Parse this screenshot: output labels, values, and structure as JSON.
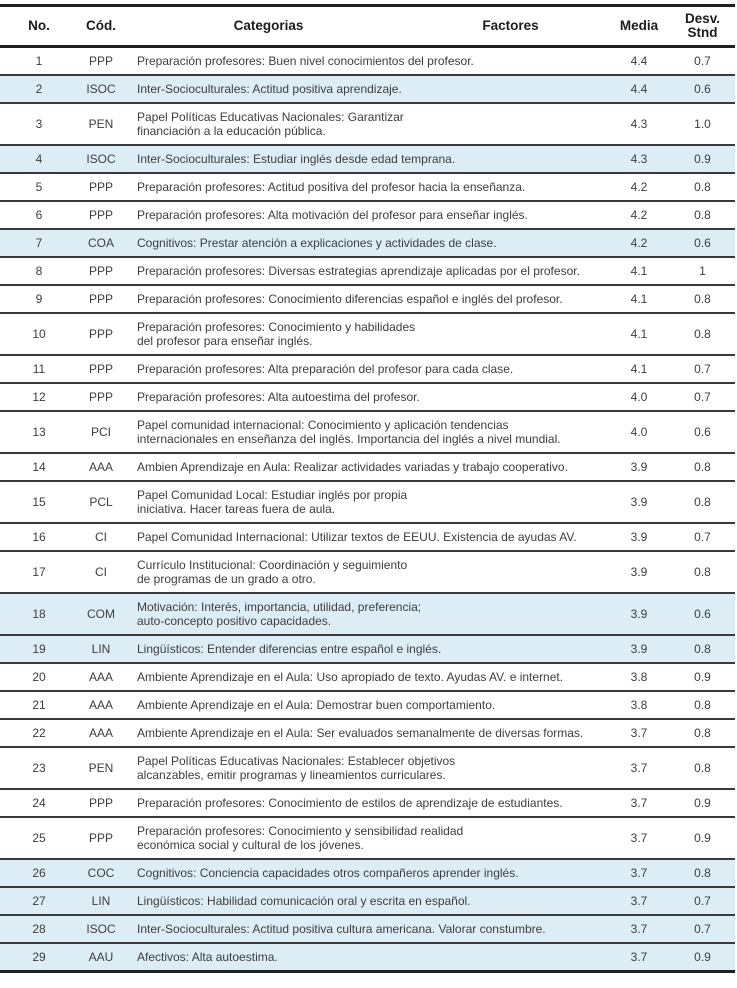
{
  "table": {
    "headers": {
      "no": "No.",
      "cod": "Cód.",
      "categorias": "Categorias",
      "factores": "Factores",
      "media": "Media",
      "desv_line1": "Desv.",
      "desv_line2": "Stnd"
    },
    "rows": [
      {
        "no": "1",
        "cod": "PPP",
        "desc": "Preparación profesores: Buen nivel conocimientos del profesor.",
        "media": "4.4",
        "desv": "0.7",
        "shaded": false
      },
      {
        "no": "2",
        "cod": "ISOC",
        "desc": "Inter-Socioculturales: Actitud positiva aprendizaje.",
        "media": "4.4",
        "desv": "0.6",
        "shaded": true
      },
      {
        "no": "3",
        "cod": "PEN",
        "desc": "Papel Políticas Educativas Nacionales: Garantizar\nfinanciación a la educación pública.",
        "media": "4.3",
        "desv": "1.0",
        "shaded": false
      },
      {
        "no": "4",
        "cod": "ISOC",
        "desc": "Inter-Socioculturales: Estudiar inglés desde edad temprana.",
        "media": "4.3",
        "desv": "0.9",
        "shaded": true
      },
      {
        "no": "5",
        "cod": "PPP",
        "desc": "Preparación profesores: Actitud positiva del profesor hacia la enseñanza.",
        "media": "4.2",
        "desv": "0.8",
        "shaded": false
      },
      {
        "no": "6",
        "cod": "PPP",
        "desc": "Preparación profesores: Alta motivación del profesor para enseñar inglés.",
        "media": "4.2",
        "desv": "0.8",
        "shaded": false
      },
      {
        "no": "7",
        "cod": "COA",
        "desc": "Cognitivos: Prestar atención a explicaciones y actividades de clase.",
        "media": "4.2",
        "desv": "0.6",
        "shaded": true
      },
      {
        "no": "8",
        "cod": "PPP",
        "desc": "Preparación profesores: Diversas estrategias aprendizaje aplicadas por el profesor.",
        "media": "4.1",
        "desv": "1",
        "shaded": false
      },
      {
        "no": "9",
        "cod": "PPP",
        "desc": "Preparación profesores: Conocimiento diferencias español e inglés del profesor.",
        "media": "4.1",
        "desv": "0.8",
        "shaded": false
      },
      {
        "no": "10",
        "cod": "PPP",
        "desc": "Preparación profesores: Conocimiento y habilidades\ndel profesor para enseñar inglés.",
        "media": "4.1",
        "desv": "0.8",
        "shaded": false
      },
      {
        "no": "11",
        "cod": "PPP",
        "desc": "Preparación profesores: Alta preparación del profesor para cada clase.",
        "media": "4.1",
        "desv": "0.7",
        "shaded": false
      },
      {
        "no": "12",
        "cod": "PPP",
        "desc": "Preparación profesores: Alta autoestima del profesor.",
        "media": "4.0",
        "desv": "0.7",
        "shaded": false
      },
      {
        "no": "13",
        "cod": "PCI",
        "desc": "Papel comunidad internacional: Conocimiento y aplicación tendencias\ninternacionales en enseñanza del inglés. Importancia del inglés a nivel mundial.",
        "media": "4.0",
        "desv": "0.6",
        "shaded": false
      },
      {
        "no": "14",
        "cod": "AAA",
        "desc": "Ambien Aprendizaje en Aula: Realizar actividades variadas y trabajo cooperativo.",
        "media": "3.9",
        "desv": "0.8",
        "shaded": false
      },
      {
        "no": "15",
        "cod": "PCL",
        "desc": "Papel Comunidad Local: Estudiar inglés por propia\niniciativa. Hacer tareas fuera de aula.",
        "media": "3.9",
        "desv": "0.8",
        "shaded": false
      },
      {
        "no": "16",
        "cod": "CI",
        "desc": "Papel Comunidad Internacional: Utilizar textos de EEUU. Existencia de ayudas AV.",
        "media": "3.9",
        "desv": "0.7",
        "shaded": false
      },
      {
        "no": "17",
        "cod": "CI",
        "desc": "Currículo Institucional: Coordinación y seguimiento\nde programas de un grado a otro.",
        "media": "3.9",
        "desv": "0.8",
        "shaded": false
      },
      {
        "no": "18",
        "cod": "COM",
        "desc": "Motivación: Interés, importancia, utilidad, preferencia;\nauto-concepto positivo capacidades.",
        "media": "3.9",
        "desv": "0.6",
        "shaded": true
      },
      {
        "no": "19",
        "cod": "LIN",
        "desc": "Lingüísticos: Entender diferencias entre español e inglés.",
        "media": "3.9",
        "desv": "0.8",
        "shaded": true
      },
      {
        "no": "20",
        "cod": "AAA",
        "desc": "Ambiente Aprendizaje en el Aula: Uso apropiado de texto. Ayudas AV. e internet.",
        "media": "3.8",
        "desv": "0.9",
        "shaded": false
      },
      {
        "no": "21",
        "cod": "AAA",
        "desc": "Ambiente Aprendizaje en el Aula: Demostrar buen comportamiento.",
        "media": "3.8",
        "desv": "0.8",
        "shaded": false
      },
      {
        "no": "22",
        "cod": "AAA",
        "desc": "Ambiente Aprendizaje en el Aula: Ser evaluados semanalmente de diversas formas.",
        "media": "3.7",
        "desv": "0.8",
        "shaded": false
      },
      {
        "no": "23",
        "cod": "PEN",
        "desc": "Papel Políticas Educativas Nacionales: Establecer objetivos\nalcanzables, emitir programas y lineamientos curriculares.",
        "media": "3.7",
        "desv": "0.8",
        "shaded": false
      },
      {
        "no": "24",
        "cod": "PPP",
        "desc": "Preparación profesores: Conocimiento de estilos de aprendizaje de estudiantes.",
        "media": "3.7",
        "desv": "0.9",
        "shaded": false
      },
      {
        "no": "25",
        "cod": "PPP",
        "desc": "Preparación profesores: Conocimiento y sensibilidad realidad\neconómica social y cultural de los jóvenes.",
        "media": "3.7",
        "desv": "0.9",
        "shaded": false
      },
      {
        "no": "26",
        "cod": "COC",
        "desc": "Cognitivos: Conciencia capacidades otros compañeros aprender inglés.",
        "media": "3.7",
        "desv": "0.8",
        "shaded": true
      },
      {
        "no": "27",
        "cod": "LIN",
        "desc": "Lingüísticos: Habilidad comunicación oral y escrita en español.",
        "media": "3.7",
        "desv": "0.7",
        "shaded": true
      },
      {
        "no": "28",
        "cod": "ISOC",
        "desc": "Inter-Socioculturales: Actitud positiva cultura americana. Valorar constumbre.",
        "media": "3.7",
        "desv": "0.7",
        "shaded": true
      },
      {
        "no": "29",
        "cod": "AAU",
        "desc": "Afectivos: Alta autoestima.",
        "media": "3.7",
        "desv": "0.9",
        "shaded": true
      }
    ]
  },
  "colors": {
    "shaded_row": "#ddedf6",
    "table_border": "#1f1f1f",
    "row_border": "#3a3a3a",
    "text": "#3d3d3d"
  }
}
